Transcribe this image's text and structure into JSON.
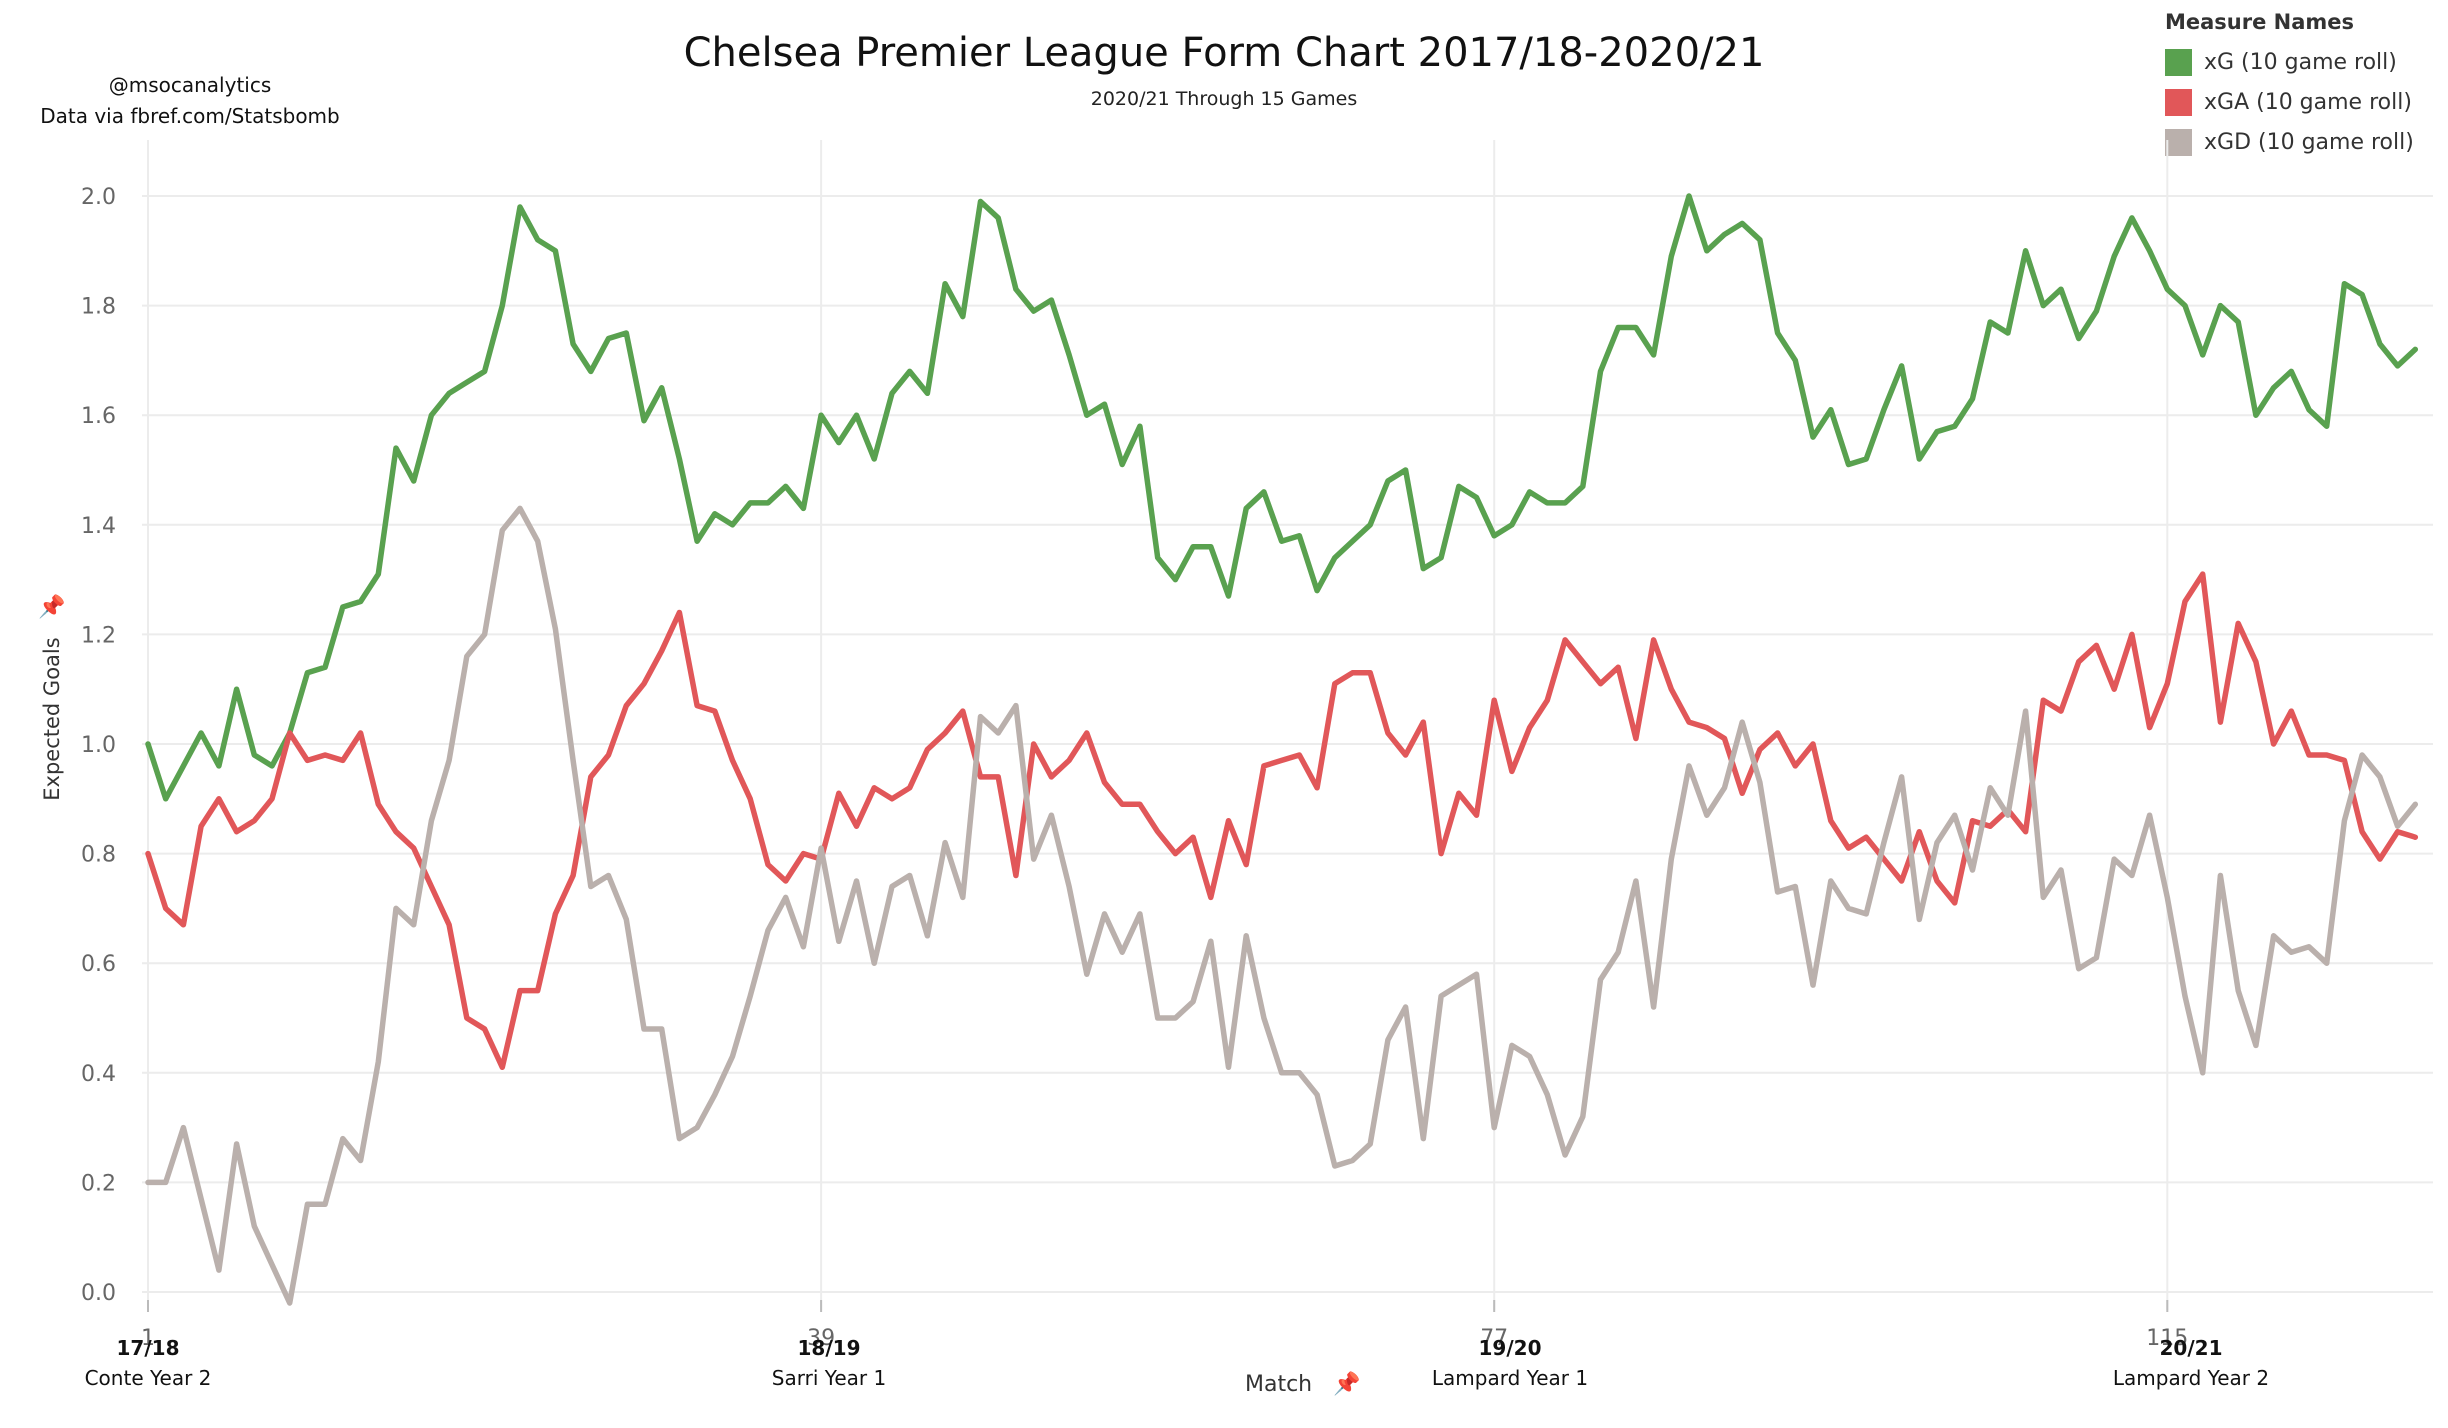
{
  "header": {
    "title": "Chelsea Premier League Form Chart 2017/18-2020/21",
    "subtitle": "2020/21 Through 15 Games"
  },
  "credit": {
    "line1": "@msocanalytics",
    "line2": "Data via fbref.com/Statsbomb"
  },
  "legend": {
    "title": "Measure Names",
    "items": [
      {
        "label": "xG (10 game roll)",
        "color": "#59a14f"
      },
      {
        "label": "xGA (10 game roll)",
        "color": "#e15759"
      },
      {
        "label": "xGD (10 game roll)",
        "color": "#bab0ac"
      }
    ]
  },
  "icons": {
    "axis_pin": "pin-icon"
  },
  "season_labels": [
    {
      "season": "17/18",
      "name": "Conte Year 2"
    },
    {
      "season": "18/19",
      "name": "Sarri Year 1"
    },
    {
      "season": "19/20",
      "name": "Lampard Year 1"
    },
    {
      "season": "20/21",
      "name": "Lampard Year 2"
    }
  ],
  "chart_data": {
    "type": "line",
    "xlabel": "Match",
    "ylabel": "Expected Goals",
    "xlim": [
      1,
      130
    ],
    "ylim": [
      0,
      2.0
    ],
    "x_ticks": [
      1,
      39,
      77,
      115
    ],
    "y_ticks": [
      0.0,
      0.2,
      0.4,
      0.6,
      0.8,
      1.0,
      1.2,
      1.4,
      1.6,
      1.8,
      2.0
    ],
    "grid": true,
    "legend_position": "top-right",
    "series": [
      {
        "name": "xG (10 game roll)",
        "color": "#59a14f",
        "values": [
          1.0,
          0.9,
          0.96,
          1.02,
          0.96,
          1.1,
          0.98,
          0.96,
          1.02,
          1.13,
          1.14,
          1.25,
          1.26,
          1.31,
          1.54,
          1.48,
          1.6,
          1.64,
          1.66,
          1.68,
          1.8,
          1.98,
          1.92,
          1.9,
          1.73,
          1.68,
          1.74,
          1.75,
          1.59,
          1.65,
          1.52,
          1.37,
          1.42,
          1.4,
          1.44,
          1.44,
          1.47,
          1.43,
          1.6,
          1.55,
          1.6,
          1.52,
          1.64,
          1.68,
          1.64,
          1.84,
          1.78,
          1.99,
          1.96,
          1.83,
          1.79,
          1.81,
          1.71,
          1.6,
          1.62,
          1.51,
          1.58,
          1.34,
          1.3,
          1.36,
          1.36,
          1.27,
          1.43,
          1.46,
          1.37,
          1.38,
          1.28,
          1.34,
          1.37,
          1.4,
          1.48,
          1.5,
          1.32,
          1.34,
          1.47,
          1.45,
          1.38,
          1.4,
          1.46,
          1.44,
          1.44,
          1.47,
          1.68,
          1.76,
          1.76,
          1.71,
          1.89,
          2.0,
          1.9,
          1.93,
          1.95,
          1.92,
          1.75,
          1.7,
          1.56,
          1.61,
          1.51,
          1.52,
          1.61,
          1.69,
          1.52,
          1.57,
          1.58,
          1.63,
          1.77,
          1.75,
          1.9,
          1.8,
          1.83,
          1.74,
          1.79,
          1.89,
          1.96,
          1.9,
          1.83,
          1.8,
          1.71,
          1.8,
          1.77,
          1.6,
          1.65,
          1.68,
          1.61,
          1.58,
          1.84,
          1.82,
          1.73,
          1.69,
          1.72
        ]
      },
      {
        "name": "xGA (10 game roll)",
        "color": "#e15759",
        "values": [
          0.8,
          0.7,
          0.67,
          0.85,
          0.9,
          0.84,
          0.86,
          0.9,
          1.02,
          0.97,
          0.98,
          0.97,
          1.02,
          0.89,
          0.84,
          0.81,
          0.74,
          0.67,
          0.5,
          0.48,
          0.41,
          0.55,
          0.55,
          0.69,
          0.76,
          0.94,
          0.98,
          1.07,
          1.11,
          1.17,
          1.24,
          1.07,
          1.06,
          0.97,
          0.9,
          0.78,
          0.75,
          0.8,
          0.79,
          0.91,
          0.85,
          0.92,
          0.9,
          0.92,
          0.99,
          1.02,
          1.06,
          0.94,
          0.94,
          0.76,
          1.0,
          0.94,
          0.97,
          1.02,
          0.93,
          0.89,
          0.89,
          0.84,
          0.8,
          0.83,
          0.72,
          0.86,
          0.78,
          0.96,
          0.97,
          0.98,
          0.92,
          1.11,
          1.13,
          1.13,
          1.02,
          0.98,
          1.04,
          0.8,
          0.91,
          0.87,
          1.08,
          0.95,
          1.03,
          1.08,
          1.19,
          1.15,
          1.11,
          1.14,
          1.01,
          1.19,
          1.1,
          1.04,
          1.03,
          1.01,
          0.91,
          0.99,
          1.02,
          0.96,
          1.0,
          0.86,
          0.81,
          0.83,
          0.79,
          0.75,
          0.84,
          0.75,
          0.71,
          0.86,
          0.85,
          0.88,
          0.84,
          1.08,
          1.06,
          1.15,
          1.18,
          1.1,
          1.2,
          1.03,
          1.11,
          1.26,
          1.31,
          1.04,
          1.22,
          1.15,
          1.0,
          1.06,
          0.98,
          0.98,
          0.97,
          0.84,
          0.79,
          0.84,
          0.83
        ]
      },
      {
        "name": "xGD (10 game roll)",
        "color": "#bab0ac",
        "values": [
          0.2,
          0.2,
          0.3,
          0.17,
          0.04,
          0.27,
          0.12,
          0.05,
          -0.02,
          0.16,
          0.16,
          0.28,
          0.24,
          0.42,
          0.7,
          0.67,
          0.86,
          0.97,
          1.16,
          1.2,
          1.39,
          1.43,
          1.37,
          1.21,
          0.97,
          0.74,
          0.76,
          0.68,
          0.48,
          0.48,
          0.28,
          0.3,
          0.36,
          0.43,
          0.54,
          0.66,
          0.72,
          0.63,
          0.81,
          0.64,
          0.75,
          0.6,
          0.74,
          0.76,
          0.65,
          0.82,
          0.72,
          1.05,
          1.02,
          1.07,
          0.79,
          0.87,
          0.74,
          0.58,
          0.69,
          0.62,
          0.69,
          0.5,
          0.5,
          0.53,
          0.64,
          0.41,
          0.65,
          0.5,
          0.4,
          0.4,
          0.36,
          0.23,
          0.24,
          0.27,
          0.46,
          0.52,
          0.28,
          0.54,
          0.56,
          0.58,
          0.3,
          0.45,
          0.43,
          0.36,
          0.25,
          0.32,
          0.57,
          0.62,
          0.75,
          0.52,
          0.79,
          0.96,
          0.87,
          0.92,
          1.04,
          0.93,
          0.73,
          0.74,
          0.56,
          0.75,
          0.7,
          0.69,
          0.82,
          0.94,
          0.68,
          0.82,
          0.87,
          0.77,
          0.92,
          0.87,
          1.06,
          0.72,
          0.77,
          0.59,
          0.61,
          0.79,
          0.76,
          0.87,
          0.72,
          0.54,
          0.4,
          0.76,
          0.55,
          0.45,
          0.65,
          0.62,
          0.63,
          0.6,
          0.86,
          0.98,
          0.94,
          0.85,
          0.89
        ]
      }
    ]
  }
}
